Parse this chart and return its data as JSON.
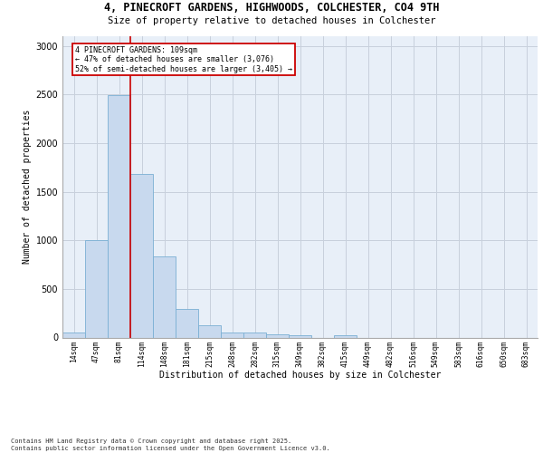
{
  "title_line1": "4, PINECROFT GARDENS, HIGHWOODS, COLCHESTER, CO4 9TH",
  "title_line2": "Size of property relative to detached houses in Colchester",
  "xlabel": "Distribution of detached houses by size in Colchester",
  "ylabel": "Number of detached properties",
  "categories": [
    "14sqm",
    "47sqm",
    "81sqm",
    "114sqm",
    "148sqm",
    "181sqm",
    "215sqm",
    "248sqm",
    "282sqm",
    "315sqm",
    "349sqm",
    "382sqm",
    "415sqm",
    "449sqm",
    "482sqm",
    "516sqm",
    "549sqm",
    "583sqm",
    "616sqm",
    "650sqm",
    "683sqm"
  ],
  "values": [
    50,
    1005,
    2490,
    1680,
    830,
    295,
    125,
    55,
    50,
    30,
    20,
    0,
    20,
    0,
    0,
    0,
    0,
    0,
    0,
    0,
    0
  ],
  "bar_color": "#c8d9ee",
  "bar_edge_color": "#7aafd4",
  "grid_color": "#c8d0dc",
  "vline_color": "#cc0000",
  "vline_position": 2.5,
  "annotation_text": "4 PINECROFT GARDENS: 109sqm\n← 47% of detached houses are smaller (3,076)\n52% of semi-detached houses are larger (3,405) →",
  "annotation_box_edge": "#cc0000",
  "ylim": [
    0,
    3100
  ],
  "yticks": [
    0,
    500,
    1000,
    1500,
    2000,
    2500,
    3000
  ],
  "background_color": "#e8eff8",
  "footer_line1": "Contains HM Land Registry data © Crown copyright and database right 2025.",
  "footer_line2": "Contains public sector information licensed under the Open Government Licence v3.0."
}
